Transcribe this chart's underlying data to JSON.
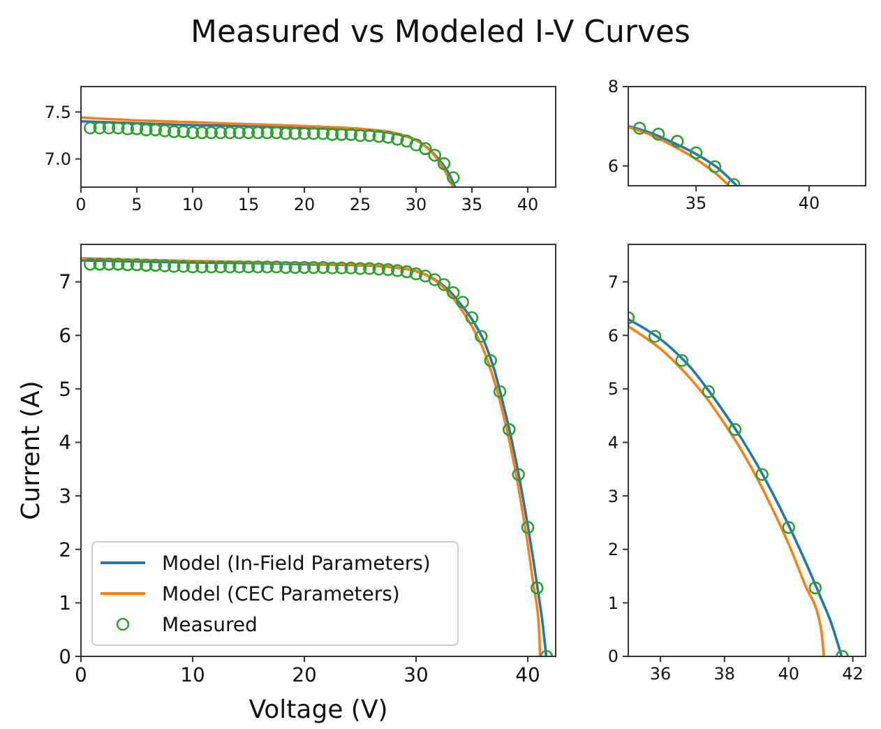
{
  "chart_data": [
    {
      "type": "line",
      "title": "Measured vs Modeled I-V Curves",
      "xlim": [
        0,
        42.5
      ],
      "ylim": [
        6.7,
        7.77
      ],
      "xticks": [
        0,
        5,
        10,
        15,
        20,
        25,
        30,
        35,
        40
      ],
      "yticks": [
        {
          "value": 7,
          "label": "7.0"
        },
        {
          "value": 7.5,
          "label": "7.5"
        }
      ],
      "series": [
        {
          "color": "#1f77b4",
          "x": [
            0,
            5,
            10,
            15,
            20,
            25,
            28,
            30,
            31,
            32,
            33,
            33.5
          ],
          "values": [
            7.4,
            7.38,
            7.36,
            7.35,
            7.33,
            7.31,
            7.27,
            7.2,
            7.12,
            7.0,
            6.83,
            6.7
          ]
        },
        {
          "color": "#ff7f0e",
          "x": [
            0,
            5,
            10,
            15,
            20,
            25,
            28,
            30,
            31,
            32,
            33,
            33.3
          ],
          "values": [
            7.44,
            7.41,
            7.39,
            7.37,
            7.35,
            7.32,
            7.28,
            7.2,
            7.12,
            6.98,
            6.78,
            6.7
          ]
        },
        {
          "type": "scatter",
          "color": "#2ca02c",
          "marker": "circle",
          "x": [
            0.83,
            1.67,
            2.5,
            3.33,
            4.17,
            5,
            5.83,
            6.67,
            7.5,
            8.33,
            9.17,
            10,
            10.83,
            11.67,
            12.5,
            13.33,
            14.17,
            15,
            15.83,
            16.67,
            17.5,
            18.33,
            19.17,
            20,
            20.83,
            21.67,
            22.5,
            23.33,
            24.17,
            25,
            25.83,
            26.67,
            27.5,
            28.33,
            29.17,
            30,
            30.83,
            31.67,
            32.5,
            33.33
          ],
          "values": [
            7.33,
            7.33,
            7.33,
            7.33,
            7.32,
            7.32,
            7.31,
            7.31,
            7.3,
            7.29,
            7.29,
            7.28,
            7.28,
            7.28,
            7.28,
            7.28,
            7.28,
            7.28,
            7.28,
            7.28,
            7.28,
            7.27,
            7.27,
            7.27,
            7.27,
            7.27,
            7.26,
            7.26,
            7.26,
            7.25,
            7.25,
            7.24,
            7.23,
            7.21,
            7.19,
            7.15,
            7.11,
            7.04,
            6.95,
            6.8
          ]
        }
      ]
    },
    {
      "type": "line",
      "xlim": [
        32,
        42.5
      ],
      "ylim": [
        5.5,
        8
      ],
      "xticks": [
        35,
        40
      ],
      "yticks": [
        6,
        8
      ],
      "series": [
        {
          "color": "#1f77b4",
          "x": [
            32,
            33,
            34,
            35,
            35.5,
            36,
            36.5,
            36.8
          ],
          "values": [
            7.0,
            6.83,
            6.58,
            6.3,
            6.13,
            5.93,
            5.67,
            5.5
          ]
        },
        {
          "color": "#ff7f0e",
          "x": [
            32,
            33,
            34,
            35,
            35.5,
            36,
            36.45
          ],
          "values": [
            6.98,
            6.78,
            6.5,
            6.17,
            5.97,
            5.75,
            5.5
          ]
        },
        {
          "type": "scatter",
          "color": "#2ca02c",
          "marker": "circle",
          "x": [
            32.5,
            33.33,
            34.17,
            35,
            35.83,
            36.67
          ],
          "values": [
            6.95,
            6.8,
            6.62,
            6.33,
            5.98,
            5.53
          ]
        }
      ]
    },
    {
      "type": "line",
      "xlabel": "Voltage (V)",
      "ylabel": "Current (A)",
      "legend": "bottom left",
      "xlim": [
        0,
        42.5
      ],
      "ylim": [
        0,
        7.7
      ],
      "xticks": [
        0,
        10,
        20,
        30,
        40
      ],
      "yticks": [
        0,
        1,
        2,
        3,
        4,
        5,
        6,
        7
      ],
      "series": [
        {
          "name": "Model (In-Field Parameters)",
          "color": "#1f77b4",
          "x": [
            0,
            5,
            10,
            15,
            20,
            25,
            28,
            30,
            31,
            32,
            33,
            34,
            35,
            35.5,
            36,
            36.5,
            37,
            37.5,
            38,
            38.5,
            39,
            39.5,
            40,
            40.5,
            41,
            41.3,
            41.65
          ],
          "values": [
            7.4,
            7.38,
            7.36,
            7.35,
            7.33,
            7.31,
            7.27,
            7.2,
            7.12,
            7.0,
            6.83,
            6.58,
            6.3,
            6.13,
            5.93,
            5.67,
            5.36,
            4.97,
            4.55,
            4.1,
            3.6,
            3.05,
            2.45,
            1.8,
            1.1,
            0.67,
            0
          ]
        },
        {
          "name": "Model (CEC Parameters)",
          "color": "#ff7f0e",
          "x": [
            0,
            5,
            10,
            15,
            20,
            25,
            28,
            30,
            31,
            32,
            33,
            34,
            35,
            35.5,
            36,
            36.5,
            37,
            37.5,
            38,
            38.5,
            39,
            39.5,
            40,
            40.5,
            41,
            41.1
          ],
          "values": [
            7.44,
            7.41,
            7.39,
            7.37,
            7.35,
            7.32,
            7.28,
            7.2,
            7.12,
            6.98,
            6.78,
            6.5,
            6.17,
            5.97,
            5.75,
            5.47,
            5.15,
            4.78,
            4.35,
            3.88,
            3.35,
            2.75,
            2.1,
            1.35,
            0.55,
            0
          ]
        },
        {
          "type": "scatter",
          "name": "Measured",
          "color": "#2ca02c",
          "marker": "circle",
          "x": [
            0.83,
            1.67,
            2.5,
            3.33,
            4.17,
            5,
            5.83,
            6.67,
            7.5,
            8.33,
            9.17,
            10,
            10.83,
            11.67,
            12.5,
            13.33,
            14.17,
            15,
            15.83,
            16.67,
            17.5,
            18.33,
            19.17,
            20,
            20.83,
            21.67,
            22.5,
            23.33,
            24.17,
            25,
            25.83,
            26.67,
            27.5,
            28.33,
            29.17,
            30,
            30.83,
            31.67,
            32.5,
            33.33,
            34.17,
            35,
            35.83,
            36.67,
            37.5,
            38.33,
            39.17,
            40,
            40.83,
            41.67
          ],
          "values": [
            7.33,
            7.33,
            7.33,
            7.33,
            7.32,
            7.32,
            7.31,
            7.31,
            7.3,
            7.29,
            7.29,
            7.28,
            7.28,
            7.28,
            7.28,
            7.28,
            7.28,
            7.28,
            7.28,
            7.28,
            7.28,
            7.27,
            7.27,
            7.27,
            7.27,
            7.27,
            7.26,
            7.26,
            7.26,
            7.25,
            7.25,
            7.24,
            7.23,
            7.21,
            7.19,
            7.15,
            7.11,
            7.04,
            6.95,
            6.8,
            6.62,
            6.33,
            5.98,
            5.53,
            4.95,
            4.24,
            3.4,
            2.41,
            1.28,
            0
          ]
        }
      ]
    },
    {
      "type": "line",
      "xlim": [
        35,
        42.4
      ],
      "ylim": [
        0,
        7.7
      ],
      "xticks": [
        36,
        38,
        40,
        42
      ],
      "yticks": [
        0,
        1,
        2,
        3,
        4,
        5,
        6,
        7
      ],
      "series": [
        {
          "color": "#1f77b4",
          "x": [
            35,
            35.5,
            36,
            36.5,
            37,
            37.5,
            38,
            38.5,
            39,
            39.5,
            40,
            40.5,
            41,
            41.3,
            41.65
          ],
          "values": [
            6.3,
            6.13,
            5.93,
            5.67,
            5.36,
            4.97,
            4.55,
            4.1,
            3.6,
            3.05,
            2.45,
            1.8,
            1.1,
            0.67,
            0
          ]
        },
        {
          "color": "#ff7f0e",
          "x": [
            35,
            35.5,
            36,
            36.5,
            37,
            37.5,
            38,
            38.5,
            39,
            39.5,
            40,
            40.5,
            41,
            41.1
          ],
          "values": [
            6.17,
            5.97,
            5.75,
            5.47,
            5.15,
            4.78,
            4.35,
            3.88,
            3.35,
            2.75,
            2.1,
            1.35,
            0.55,
            0
          ]
        },
        {
          "type": "scatter",
          "color": "#2ca02c",
          "marker": "circle",
          "x": [
            35,
            35.83,
            36.67,
            37.5,
            38.33,
            39.17,
            40,
            40.83,
            41.67
          ],
          "values": [
            6.33,
            5.98,
            5.53,
            4.95,
            4.24,
            3.4,
            2.41,
            1.28,
            0
          ]
        }
      ]
    }
  ]
}
